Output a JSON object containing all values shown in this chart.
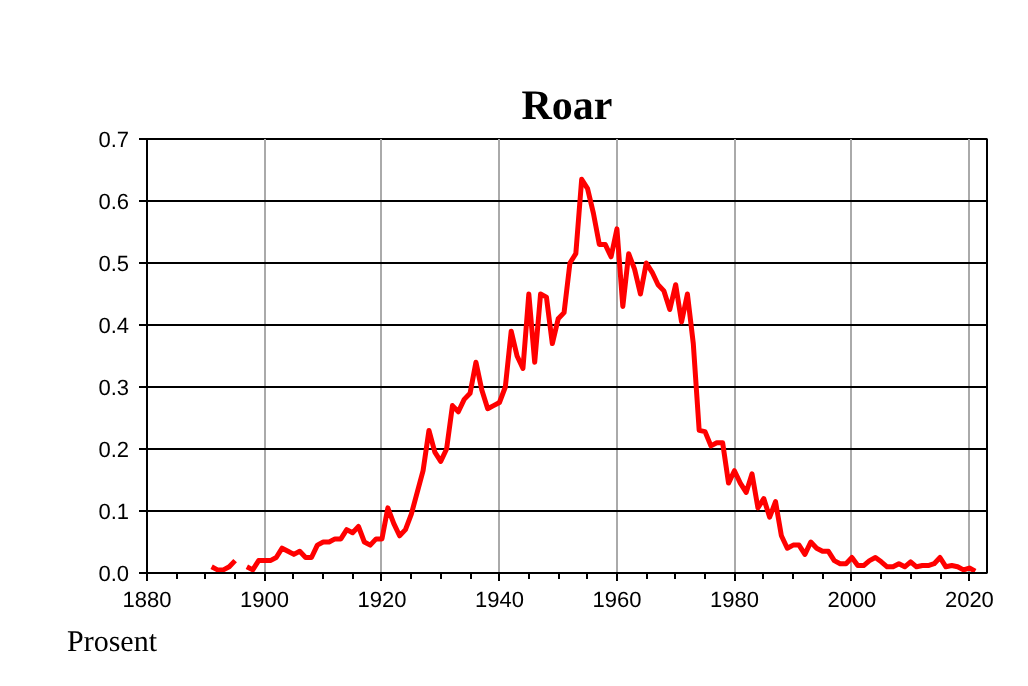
{
  "chart_data": {
    "type": "line",
    "title": "Roar",
    "ylabel": "Prosent",
    "x": [
      1891,
      1892,
      1893,
      1894,
      1895,
      1896,
      1897,
      1898,
      1899,
      1900,
      1901,
      1902,
      1903,
      1904,
      1905,
      1906,
      1907,
      1908,
      1909,
      1910,
      1911,
      1912,
      1913,
      1914,
      1915,
      1916,
      1917,
      1918,
      1919,
      1920,
      1921,
      1922,
      1923,
      1924,
      1925,
      1926,
      1927,
      1928,
      1929,
      1930,
      1931,
      1932,
      1933,
      1934,
      1935,
      1936,
      1937,
      1938,
      1939,
      1940,
      1941,
      1942,
      1943,
      1944,
      1945,
      1946,
      1947,
      1948,
      1949,
      1950,
      1951,
      1952,
      1953,
      1954,
      1955,
      1956,
      1957,
      1958,
      1959,
      1960,
      1961,
      1962,
      1963,
      1964,
      1965,
      1966,
      1967,
      1968,
      1969,
      1970,
      1971,
      1972,
      1973,
      1974,
      1975,
      1976,
      1977,
      1978,
      1979,
      1980,
      1981,
      1982,
      1983,
      1984,
      1985,
      1986,
      1987,
      1988,
      1989,
      1990,
      1991,
      1992,
      1993,
      1994,
      1995,
      1996,
      1997,
      1998,
      1999,
      2000,
      2001,
      2002,
      2003,
      2004,
      2005,
      2006,
      2007,
      2008,
      2009,
      2010,
      2011,
      2012,
      2013,
      2014,
      2015,
      2016,
      2017,
      2018,
      2019,
      2020,
      2021
    ],
    "series": [
      {
        "color": "#ff0000",
        "values": [
          0.01,
          0.005,
          0.005,
          0.01,
          0.02,
          null,
          0.01,
          0.005,
          0.02,
          0.02,
          0.02,
          0.025,
          0.04,
          0.035,
          0.03,
          0.035,
          0.025,
          0.025,
          0.045,
          0.05,
          0.05,
          0.055,
          0.055,
          0.07,
          0.065,
          0.075,
          0.05,
          0.045,
          0.055,
          0.055,
          0.105,
          0.08,
          0.06,
          0.07,
          0.095,
          0.13,
          0.165,
          0.23,
          0.195,
          0.18,
          0.2,
          0.27,
          0.26,
          0.28,
          0.29,
          0.34,
          0.295,
          0.265,
          0.27,
          0.275,
          0.3,
          0.39,
          0.35,
          0.33,
          0.45,
          0.34,
          0.45,
          0.445,
          0.37,
          0.41,
          0.42,
          0.5,
          0.515,
          0.635,
          0.62,
          0.58,
          0.53,
          0.53,
          0.51,
          0.555,
          0.43,
          0.515,
          0.49,
          0.45,
          0.5,
          0.485,
          0.465,
          0.455,
          0.425,
          0.465,
          0.405,
          0.45,
          0.37,
          0.23,
          0.228,
          0.205,
          0.21,
          0.21,
          0.145,
          0.165,
          0.145,
          0.13,
          0.16,
          0.105,
          0.12,
          0.09,
          0.115,
          0.06,
          0.04,
          0.045,
          0.045,
          0.03,
          0.05,
          0.04,
          0.035,
          0.035,
          0.02,
          0.015,
          0.015,
          0.025,
          0.012,
          0.012,
          0.02,
          0.025,
          0.018,
          0.01,
          0.01,
          0.015,
          0.01,
          0.018,
          0.01,
          0.012,
          0.012,
          0.015,
          0.025,
          0.01,
          0.012,
          0.01,
          0.005,
          0.008,
          0.003
        ]
      }
    ],
    "xlim": [
      1880,
      2023
    ],
    "xticks": [
      1880,
      1900,
      1920,
      1940,
      1960,
      1980,
      2000,
      2020
    ],
    "ylim": [
      0,
      0.7
    ],
    "yticks": [
      {
        "value": 0,
        "label": "0.0"
      },
      0.1,
      0.2,
      0.3,
      0.4,
      0.5,
      0.6,
      0.7
    ],
    "grid": true
  }
}
